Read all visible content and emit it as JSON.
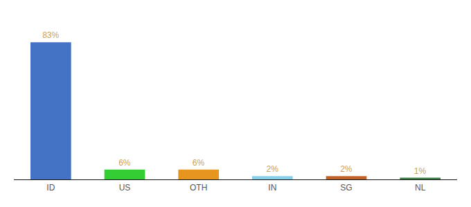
{
  "chart_data": {
    "type": "bar",
    "categories": [
      "ID",
      "US",
      "OTH",
      "IN",
      "SG",
      "NL"
    ],
    "values": [
      83,
      6,
      6,
      2,
      2,
      1
    ],
    "value_labels": [
      "83%",
      "6%",
      "6%",
      "2%",
      "2%",
      "1%"
    ],
    "colors": [
      "#4472c4",
      "#33cc33",
      "#e6951e",
      "#87ceeb",
      "#c0622a",
      "#3a7d44"
    ],
    "ylim": [
      0,
      96
    ],
    "data_labels": true,
    "tick_labels": "x",
    "grid": false
  }
}
